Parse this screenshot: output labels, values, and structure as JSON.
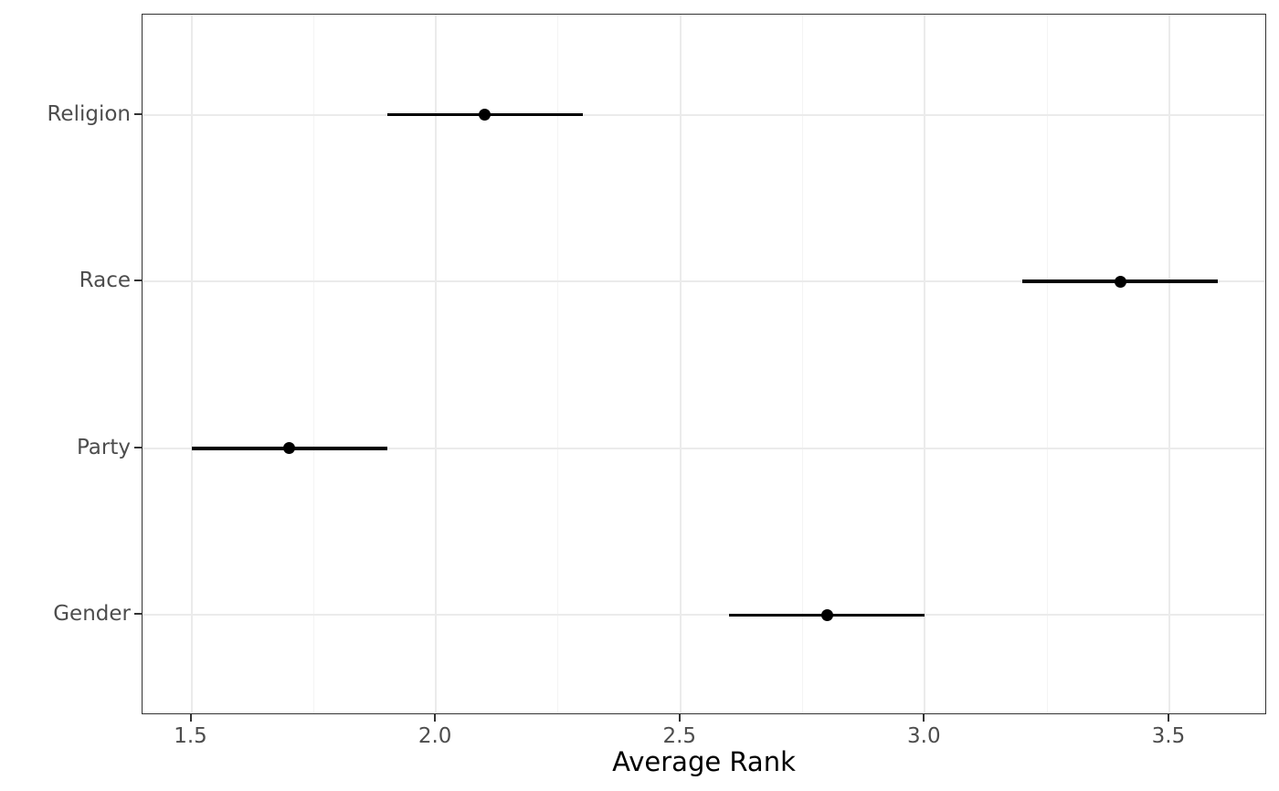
{
  "figure": {
    "background": "#ffffff"
  },
  "chart_data": {
    "type": "scatter",
    "subtype": "horizontal-pointrange",
    "title": "",
    "xlabel": "Average Rank",
    "ylabel": "",
    "legend_position": "none",
    "grid": {
      "x_major": true,
      "x_minor": true,
      "y_major": true,
      "y_minor": false
    },
    "x_axis": {
      "range": [
        1.4,
        3.7
      ],
      "ticks": [
        1.5,
        2.0,
        2.5,
        3.0,
        3.5
      ],
      "tick_labels": [
        "1.5",
        "2.0",
        "2.5",
        "3.0",
        "3.5"
      ],
      "minor_gridlines": [
        1.75,
        2.25,
        2.75,
        3.25
      ]
    },
    "y_axis": {
      "categories_top_to_bottom": [
        "Religion",
        "Race",
        "Party",
        "Gender"
      ],
      "expansion": 0.6
    },
    "points": [
      {
        "category": "Religion",
        "value": 2.1,
        "lower": 1.9,
        "upper": 2.3
      },
      {
        "category": "Race",
        "value": 3.4,
        "lower": 3.2,
        "upper": 3.6
      },
      {
        "category": "Party",
        "value": 1.7,
        "lower": 1.5,
        "upper": 1.9
      },
      {
        "category": "Gender",
        "value": 2.8,
        "lower": 2.6,
        "upper": 3.0
      }
    ],
    "colors": {
      "point": "#000000",
      "range_line": "#000000",
      "grid_major": "#ebebeb",
      "grid_minor": "#f4f4f4",
      "panel_border": "#333333",
      "tick_mark": "#333333",
      "axis_text": "#4d4d4d",
      "axis_title": "#000000",
      "panel_background": "#ffffff"
    }
  }
}
